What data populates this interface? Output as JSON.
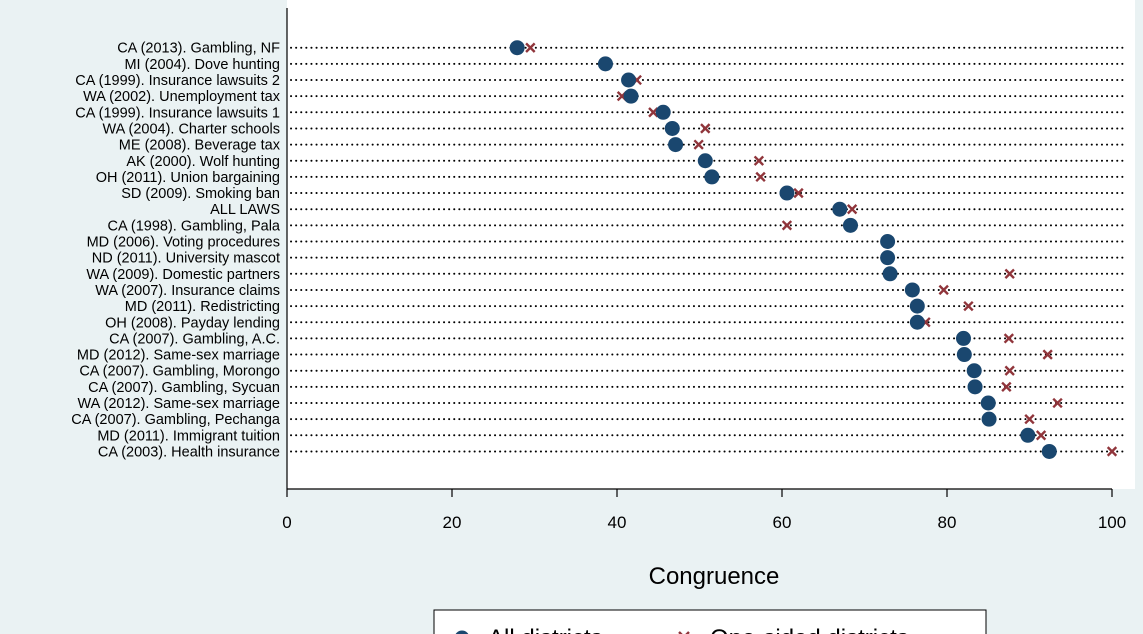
{
  "chart_data": {
    "type": "scatter",
    "title": "",
    "xlabel": "Congruence",
    "ylabel": "",
    "xlim": [
      0,
      100
    ],
    "xticks": [
      0,
      20,
      40,
      60,
      80,
      100
    ],
    "grid": "dotted horizontal",
    "legend_position": "bottom",
    "categories": [
      "CA (2013). Gambling, NF",
      "MI (2004). Dove hunting",
      "CA (1999). Insurance lawsuits 2",
      "WA (2002). Unemployment tax",
      "CA (1999). Insurance lawsuits 1",
      "WA (2004). Charter schools",
      "ME (2008). Beverage tax",
      "AK (2000). Wolf hunting",
      "OH (2011). Union bargaining",
      "SD (2009). Smoking ban",
      "ALL LAWS",
      "CA (1998). Gambling, Pala",
      "MD (2006). Voting procedures",
      "ND (2011). University mascot",
      "WA (2009). Domestic partners",
      "WA (2007). Insurance claims",
      "MD (2011). Redistricting",
      "OH (2008). Payday lending",
      "CA (2007). Gambling, A.C.",
      "MD (2012). Same-sex marriage",
      "CA (2007). Gambling, Morongo",
      "CA (2007). Gambling, Sycuan",
      "WA (2012). Same-sex marriage",
      "CA (2007). Gambling, Pechanga",
      "MD (2011). Immigrant tuition",
      "CA (2003). Health insurance"
    ],
    "series": [
      {
        "name": "All districts",
        "marker": "circle",
        "color": "#1a476f",
        "values": [
          27.9,
          38.6,
          41.4,
          41.7,
          45.6,
          46.7,
          47.1,
          50.7,
          51.5,
          60.6,
          67.0,
          68.3,
          72.8,
          72.8,
          73.1,
          75.8,
          76.4,
          76.4,
          82.0,
          82.1,
          83.3,
          83.4,
          85.0,
          85.1,
          89.8,
          92.4
        ]
      },
      {
        "name": "One-sided districts",
        "marker": "x",
        "color": "#90353b",
        "values": [
          29.5,
          null,
          42.4,
          40.6,
          44.4,
          50.7,
          49.9,
          57.2,
          57.4,
          62.0,
          68.5,
          60.6,
          null,
          null,
          87.6,
          79.6,
          82.6,
          77.4,
          87.5,
          92.2,
          87.6,
          87.2,
          93.4,
          90.0,
          91.4,
          100.0
        ]
      }
    ]
  }
}
